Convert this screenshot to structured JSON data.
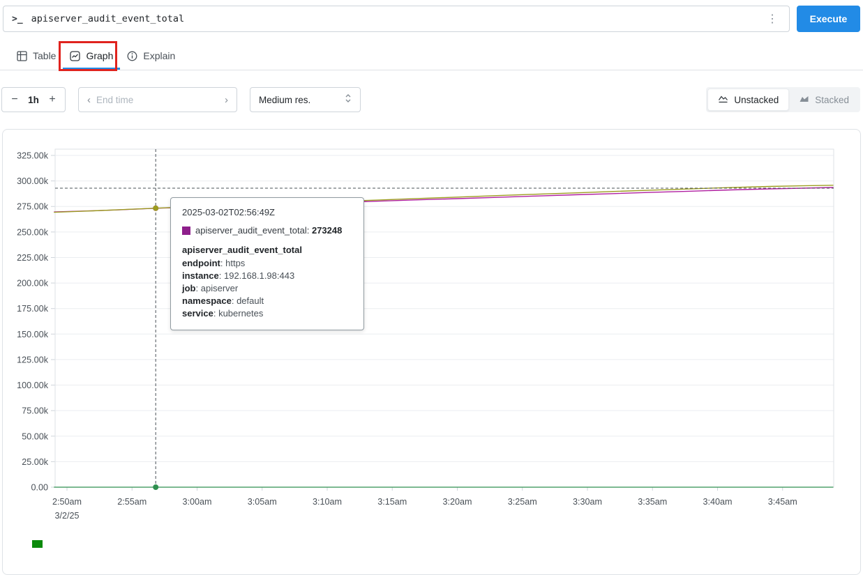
{
  "colors": {
    "accent": "#228be6",
    "highlight_red": "#e0231e",
    "series_magenta": "#b01fa0",
    "series_olive": "#9c9c20",
    "series_green": "#2f8f4f",
    "legend_green": "#0b8a0b"
  },
  "query_bar": {
    "prompt_glyph": ">_",
    "query": "apiserver_audit_event_total",
    "kebab_glyph": "⋮",
    "execute_label": "Execute"
  },
  "tabs": {
    "items": [
      {
        "label": "Table"
      },
      {
        "label": "Graph"
      },
      {
        "label": "Explain"
      }
    ]
  },
  "controls": {
    "range": {
      "decrease_glyph": "−",
      "value": "1h",
      "increase_glyph": "+"
    },
    "end_time": {
      "prev_glyph": "‹",
      "placeholder": "End time",
      "next_glyph": "›"
    },
    "resolution": {
      "value": "Medium res."
    },
    "stacking": {
      "unstacked_label": "Unstacked",
      "stacked_label": "Stacked"
    }
  },
  "tooltip": {
    "timestamp": "2025-03-02T02:56:49Z",
    "series_name": "apiserver_audit_event_total",
    "series_name_suffix": ": ",
    "series_value": "273248",
    "swatch_color": "#8e1f8b",
    "metric_name": "apiserver_audit_event_total",
    "labels": [
      {
        "key": "endpoint",
        "value": "https"
      },
      {
        "key": "instance",
        "value": "192.168.1.98:443"
      },
      {
        "key": "job",
        "value": "apiserver"
      },
      {
        "key": "namespace",
        "value": "default"
      },
      {
        "key": "service",
        "value": "kubernetes"
      }
    ]
  },
  "chart_data": {
    "type": "line",
    "title": "apiserver_audit_event_total",
    "xlabel": "",
    "ylabel": "",
    "ylim": [
      0,
      332000
    ],
    "grid": true,
    "legend_position": "bottom",
    "y_ticks": [
      {
        "v": 0,
        "label": "0.00"
      },
      {
        "v": 25000,
        "label": "25.00k"
      },
      {
        "v": 50000,
        "label": "50.00k"
      },
      {
        "v": 75000,
        "label": "75.00k"
      },
      {
        "v": 100000,
        "label": "100.00k"
      },
      {
        "v": 125000,
        "label": "125.00k"
      },
      {
        "v": 150000,
        "label": "150.00k"
      },
      {
        "v": 175000,
        "label": "175.00k"
      },
      {
        "v": 200000,
        "label": "200.00k"
      },
      {
        "v": 225000,
        "label": "225.00k"
      },
      {
        "v": 250000,
        "label": "250.00k"
      },
      {
        "v": 275000,
        "label": "275.00k"
      },
      {
        "v": 300000,
        "label": "300.00k"
      },
      {
        "v": 325000,
        "label": "325.00k"
      }
    ],
    "x_ticks": [
      {
        "m": 170,
        "label": "2:50am",
        "sublabel": "3/2/25"
      },
      {
        "m": 175,
        "label": "2:55am"
      },
      {
        "m": 180,
        "label": "3:00am"
      },
      {
        "m": 185,
        "label": "3:05am"
      },
      {
        "m": 190,
        "label": "3:10am"
      },
      {
        "m": 195,
        "label": "3:15am"
      },
      {
        "m": 200,
        "label": "3:20am"
      },
      {
        "m": 205,
        "label": "3:25am"
      },
      {
        "m": 210,
        "label": "3:30am"
      },
      {
        "m": 215,
        "label": "3:35am"
      },
      {
        "m": 220,
        "label": "3:40am"
      },
      {
        "m": 225,
        "label": "3:45am"
      }
    ],
    "series": [
      {
        "name": "apiserver_audit_event_total (magenta)",
        "color": "#b01fa0",
        "width": 1.4,
        "points": [
          [
            169,
            269600
          ],
          [
            172,
            270800
          ],
          [
            174,
            271700
          ],
          [
            176.82,
            273248
          ],
          [
            179,
            274100
          ],
          [
            182,
            275300
          ],
          [
            185,
            276500
          ],
          [
            188,
            277800
          ],
          [
            191,
            279000
          ],
          [
            194,
            280200
          ],
          [
            197,
            281500
          ],
          [
            200,
            282700
          ],
          [
            203,
            283900
          ],
          [
            206,
            285200
          ],
          [
            209,
            286400
          ],
          [
            212,
            287600
          ],
          [
            215,
            288900
          ],
          [
            218,
            290000
          ],
          [
            221,
            291200
          ],
          [
            224,
            292200
          ],
          [
            226.5,
            292900
          ],
          [
            228.9,
            293600
          ]
        ]
      },
      {
        "name": "apiserver_audit_event_total (olive)",
        "color": "#9c9c20",
        "width": 1.4,
        "points": [
          [
            169,
            269300
          ],
          [
            172,
            270700
          ],
          [
            174,
            271800
          ],
          [
            176.82,
            273300
          ],
          [
            179,
            274400
          ],
          [
            182,
            275800
          ],
          [
            185,
            277200
          ],
          [
            188,
            278600
          ],
          [
            191,
            280000
          ],
          [
            194,
            281400
          ],
          [
            197,
            282800
          ],
          [
            200,
            284200
          ],
          [
            203,
            285600
          ],
          [
            206,
            287000
          ],
          [
            209,
            288300
          ],
          [
            212,
            289700
          ],
          [
            215,
            291000
          ],
          [
            218,
            292300
          ],
          [
            221,
            293500
          ],
          [
            224,
            294600
          ],
          [
            226.5,
            295200
          ],
          [
            228.9,
            295800
          ]
        ]
      },
      {
        "name": "apiserver_audit_event_total (green, zero)",
        "color": "#2f8f4f",
        "width": 1.3,
        "points": [
          [
            169,
            0
          ],
          [
            228.9,
            0
          ]
        ]
      }
    ],
    "cursor": {
      "timestamp": "2025-03-02T02:56:49Z",
      "time_minutes": 176.82,
      "h_line_value": 292900,
      "dots": [
        {
          "series": 0,
          "v": 273248
        },
        {
          "series": 1,
          "v": 273300
        },
        {
          "series": 2,
          "v": 0
        }
      ]
    },
    "legend": [
      {
        "color": "#0b8a0b",
        "label": ""
      }
    ]
  }
}
